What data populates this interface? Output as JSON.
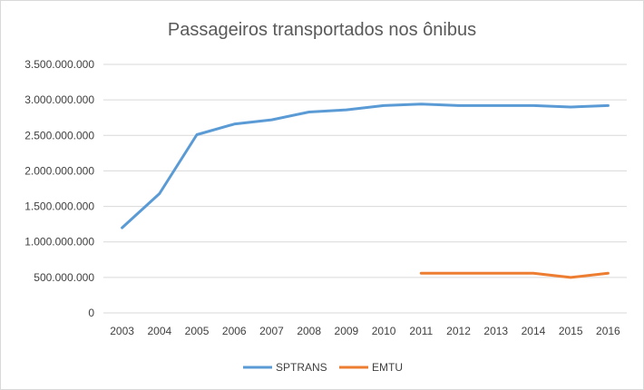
{
  "chart_data": {
    "type": "line",
    "title": "Passageiros transportados nos ônibus",
    "xlabel": "",
    "ylabel": "",
    "categories": [
      "2003",
      "2004",
      "2005",
      "2006",
      "2007",
      "2008",
      "2009",
      "2010",
      "2011",
      "2012",
      "2013",
      "2014",
      "2015",
      "2016"
    ],
    "ylim": [
      0,
      3500000000
    ],
    "yticks": [
      0,
      500000000,
      1000000000,
      1500000000,
      2000000000,
      2500000000,
      3000000000,
      3500000000
    ],
    "ytick_labels": [
      "0",
      "500.000.000",
      "1.000.000.000",
      "1.500.000.000",
      "2.000.000.000",
      "2.500.000.000",
      "3.000.000.000",
      "3.500.000.000"
    ],
    "grid": true,
    "legend_position": "bottom",
    "series": [
      {
        "name": "SPTRANS",
        "color": "#5b9bd5",
        "values": [
          1200000000,
          1680000000,
          2510000000,
          2660000000,
          2720000000,
          2830000000,
          2860000000,
          2920000000,
          2940000000,
          2920000000,
          2920000000,
          2920000000,
          2900000000,
          2920000000
        ]
      },
      {
        "name": "EMTU",
        "color": "#ed7d31",
        "values": [
          null,
          null,
          null,
          null,
          null,
          null,
          null,
          null,
          560000000,
          560000000,
          560000000,
          560000000,
          500000000,
          560000000
        ]
      }
    ]
  }
}
